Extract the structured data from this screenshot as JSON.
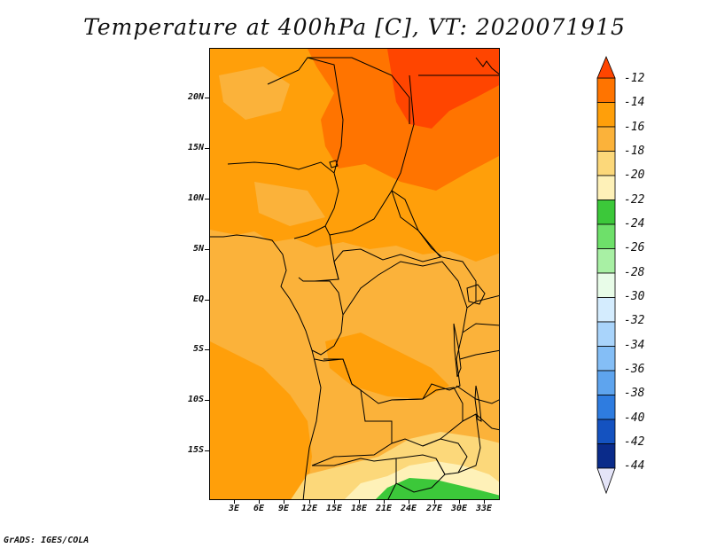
{
  "title": "Temperature at 400hPa [C], VT: 2020071915",
  "footer": "GrADS: IGES/COLA",
  "map": {
    "lat_labels": [
      "20N",
      "15N",
      "10N",
      "5N",
      "EQ",
      "5S",
      "10S",
      "15S"
    ],
    "lon_labels": [
      "3E",
      "6E",
      "9E",
      "12E",
      "15E",
      "18E",
      "21E",
      "24E",
      "27E",
      "30E",
      "33E"
    ]
  },
  "colorbar": {
    "labels": [
      "-12",
      "-14",
      "-16",
      "-18",
      "-20",
      "-22",
      "-24",
      "-26",
      "-28",
      "-30",
      "-32",
      "-34",
      "-36",
      "-38",
      "-40",
      "-42",
      "-44"
    ],
    "colors": [
      "#ff4500",
      "#ff7400",
      "#ff9f0a",
      "#fbb23a",
      "#fcd87a",
      "#fef1b8",
      "#3cc83a",
      "#6ee06a",
      "#a8f0a4",
      "#e8fce8",
      "#d4ecfe",
      "#a9d4fb",
      "#84bef6",
      "#5ea4ee",
      "#2e7ce0",
      "#1452c0",
      "#0a2b8a",
      "#0a1470",
      "#e8e8f8"
    ],
    "upper_arrow_color": "#ff4500",
    "lower_arrow_color": "#e4e4f8"
  },
  "colors": {
    "c_m12": "#ff4500",
    "c_m14": "#ff7400",
    "c_m16": "#ff9f0a",
    "c_m18": "#fbb23a",
    "c_m20": "#fcd87a",
    "c_m22": "#fef1b8",
    "c_m24": "#3cc83a"
  }
}
